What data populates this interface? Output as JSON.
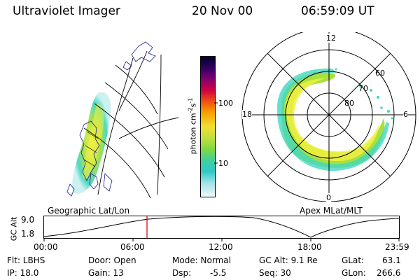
{
  "header": {
    "instrument": "Ultraviolet Imager",
    "date": "20 Nov 00",
    "time": "06:59:09 UT"
  },
  "colorbar": {
    "unit_label": "photon cm",
    "unit_sup1": "-2",
    "unit_mid": "s",
    "unit_sup2": "-1",
    "ticks": [
      "100",
      "10"
    ]
  },
  "polar_plot": {
    "mlt_labels": {
      "top": "12",
      "left": "18",
      "right": "6",
      "bottom": "0"
    },
    "lat_labels": [
      "60",
      "70",
      "80"
    ]
  },
  "panel_titles": {
    "left": "Geographic Lat/Lon",
    "right": "Apex MLat/MLT"
  },
  "altitude_plot": {
    "ylabel": "GC Alt",
    "yticks": [
      "9.0",
      "1.8"
    ],
    "xticks": [
      "00:00",
      "06:00",
      "12:00",
      "18:00",
      "23:59"
    ],
    "marker_time": "06:59"
  },
  "status": {
    "flt": "Flt: LBHS",
    "ip": "IP: 18.0",
    "door": "Door: Open",
    "gain": "Gain: 13",
    "mode": "Mode: Normal",
    "dsp": "Dsp:",
    "dsp_value": "-5.5",
    "gc_alt": "GC Alt: 9.1 Re",
    "seq": "Seq: 30",
    "glat": "GLat:",
    "glat_value": "63.1",
    "glon": "GLon:",
    "glon_value": "266.6"
  },
  "colors": {
    "aurora_low": "#40d8c0",
    "aurora_mid": "#a8e040",
    "aurora_high": "#f0f040",
    "grid": "#000000",
    "marker": "#cc0000",
    "coastline": "#1a1a8c"
  }
}
